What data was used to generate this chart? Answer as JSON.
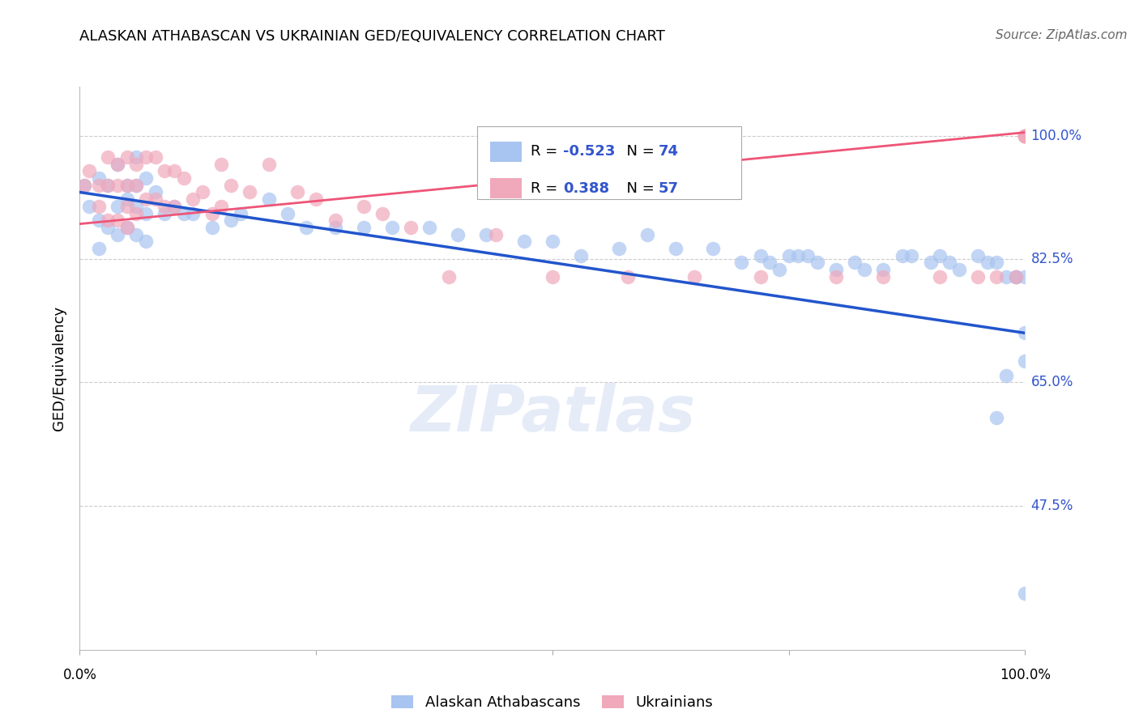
{
  "title": "ALASKAN ATHABASCAN VS UKRAINIAN GED/EQUIVALENCY CORRELATION CHART",
  "source": "Source: ZipAtlas.com",
  "ylabel": "GED/Equivalency",
  "right_ytick_vals": [
    0.475,
    0.65,
    0.825,
    1.0
  ],
  "right_ytick_labels": [
    "47.5%",
    "65.0%",
    "82.5%",
    "100.0%"
  ],
  "legend_label1": "Alaskan Athabascans",
  "legend_label2": "Ukrainians",
  "blue_color": "#a8c4f0",
  "pink_color": "#f0a8bb",
  "blue_line_color": "#2255cc",
  "pink_line_color": "#ee5577",
  "watermark_text": "ZIPatlas",
  "background_color": "#ffffff",
  "grid_color": "#cccccc",
  "xmin": 0.0,
  "xmax": 1.0,
  "ymin": 0.27,
  "ymax": 1.07,
  "blue_scatter_x": [
    0.005,
    0.01,
    0.02,
    0.02,
    0.02,
    0.03,
    0.03,
    0.04,
    0.04,
    0.04,
    0.05,
    0.05,
    0.05,
    0.06,
    0.06,
    0.06,
    0.06,
    0.07,
    0.07,
    0.07,
    0.08,
    0.09,
    0.1,
    0.11,
    0.12,
    0.14,
    0.16,
    0.17,
    0.2,
    0.22,
    0.24,
    0.27,
    0.3,
    0.33,
    0.37,
    0.4,
    0.43,
    0.47,
    0.5,
    0.53,
    0.57,
    0.6,
    0.63,
    0.67,
    0.7,
    0.72,
    0.73,
    0.74,
    0.75,
    0.76,
    0.77,
    0.78,
    0.8,
    0.82,
    0.83,
    0.85,
    0.87,
    0.88,
    0.9,
    0.91,
    0.92,
    0.93,
    0.95,
    0.96,
    0.97,
    0.97,
    0.98,
    0.98,
    0.99,
    0.99,
    1.0,
    1.0,
    1.0,
    1.0
  ],
  "blue_scatter_y": [
    0.93,
    0.9,
    0.94,
    0.88,
    0.84,
    0.93,
    0.87,
    0.96,
    0.9,
    0.86,
    0.93,
    0.91,
    0.87,
    0.97,
    0.93,
    0.9,
    0.86,
    0.94,
    0.89,
    0.85,
    0.92,
    0.89,
    0.9,
    0.89,
    0.89,
    0.87,
    0.88,
    0.89,
    0.91,
    0.89,
    0.87,
    0.87,
    0.87,
    0.87,
    0.87,
    0.86,
    0.86,
    0.85,
    0.85,
    0.83,
    0.84,
    0.86,
    0.84,
    0.84,
    0.82,
    0.83,
    0.82,
    0.81,
    0.83,
    0.83,
    0.83,
    0.82,
    0.81,
    0.82,
    0.81,
    0.81,
    0.83,
    0.83,
    0.82,
    0.83,
    0.82,
    0.81,
    0.83,
    0.82,
    0.6,
    0.82,
    0.66,
    0.8,
    0.8,
    0.8,
    0.8,
    0.72,
    0.68,
    0.35
  ],
  "pink_scatter_x": [
    0.005,
    0.01,
    0.02,
    0.02,
    0.03,
    0.03,
    0.03,
    0.04,
    0.04,
    0.04,
    0.05,
    0.05,
    0.05,
    0.05,
    0.06,
    0.06,
    0.06,
    0.07,
    0.07,
    0.08,
    0.08,
    0.09,
    0.09,
    0.1,
    0.1,
    0.11,
    0.12,
    0.13,
    0.14,
    0.15,
    0.15,
    0.16,
    0.18,
    0.2,
    0.23,
    0.25,
    0.27,
    0.3,
    0.32,
    0.35,
    0.39,
    0.44,
    0.5,
    0.58,
    0.65,
    0.72,
    0.8,
    0.85,
    0.91,
    0.95,
    0.97,
    0.99,
    1.0,
    1.0,
    1.0,
    1.0,
    1.0
  ],
  "pink_scatter_y": [
    0.93,
    0.95,
    0.93,
    0.9,
    0.97,
    0.93,
    0.88,
    0.96,
    0.93,
    0.88,
    0.97,
    0.93,
    0.9,
    0.87,
    0.96,
    0.93,
    0.89,
    0.97,
    0.91,
    0.97,
    0.91,
    0.95,
    0.9,
    0.95,
    0.9,
    0.94,
    0.91,
    0.92,
    0.89,
    0.96,
    0.9,
    0.93,
    0.92,
    0.96,
    0.92,
    0.91,
    0.88,
    0.9,
    0.89,
    0.87,
    0.8,
    0.86,
    0.8,
    0.8,
    0.8,
    0.8,
    0.8,
    0.8,
    0.8,
    0.8,
    0.8,
    0.8,
    1.0,
    1.0,
    1.0,
    1.0,
    1.0
  ],
  "blue_line_x0": 0.0,
  "blue_line_y0": 0.92,
  "blue_line_x1": 1.0,
  "blue_line_y1": 0.72,
  "pink_line_x0": 0.0,
  "pink_line_y0": 0.875,
  "pink_line_x1": 1.0,
  "pink_line_y1": 1.005
}
